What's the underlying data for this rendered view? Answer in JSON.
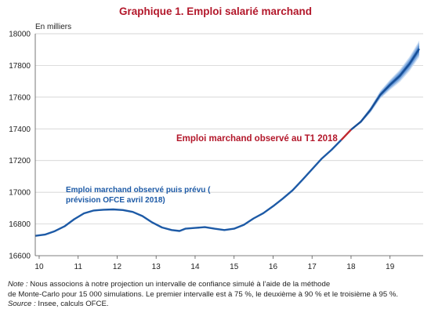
{
  "header": {
    "title": "Graphique 1. Emploi salarié marchand",
    "unit": "En milliers"
  },
  "chart_data": {
    "type": "line",
    "title": "Graphique 1. Emploi salarié marchand",
    "ylabel": "En milliers",
    "xlabel": "",
    "xlim": [
      9.9,
      19.85
    ],
    "ylim": [
      16600,
      18000
    ],
    "xticks": [
      10,
      11,
      12,
      13,
      14,
      15,
      16,
      17,
      18,
      19
    ],
    "xtick_labels": [
      "10",
      "11",
      "12",
      "13",
      "14",
      "15",
      "16",
      "17",
      "18",
      "19"
    ],
    "yticks": [
      16600,
      16800,
      17000,
      17200,
      17400,
      17600,
      17800,
      18000
    ],
    "ytick_labels": [
      "16600",
      "16800",
      "17000",
      "17200",
      "17400",
      "17600",
      "17800",
      "18000"
    ],
    "grid": "horizontal",
    "series": [
      {
        "name": "Emploi marchand observé puis prévu ( prévision OFCE avril 2018)",
        "color": "#1d5aa6",
        "points": [
          [
            9.9,
            16725
          ],
          [
            10.15,
            16733
          ],
          [
            10.4,
            16755
          ],
          [
            10.65,
            16785
          ],
          [
            10.9,
            16830
          ],
          [
            11.15,
            16867
          ],
          [
            11.4,
            16885
          ],
          [
            11.65,
            16890
          ],
          [
            11.9,
            16892
          ],
          [
            12.15,
            16888
          ],
          [
            12.4,
            16876
          ],
          [
            12.65,
            16850
          ],
          [
            12.9,
            16810
          ],
          [
            13.15,
            16778
          ],
          [
            13.4,
            16762
          ],
          [
            13.6,
            16756
          ],
          [
            13.75,
            16770
          ],
          [
            14.0,
            16775
          ],
          [
            14.25,
            16780
          ],
          [
            14.5,
            16770
          ],
          [
            14.75,
            16762
          ],
          [
            15.0,
            16770
          ],
          [
            15.25,
            16795
          ],
          [
            15.5,
            16835
          ],
          [
            15.75,
            16868
          ],
          [
            16.0,
            16912
          ],
          [
            16.25,
            16960
          ],
          [
            16.5,
            17012
          ],
          [
            16.75,
            17078
          ],
          [
            17.0,
            17145
          ],
          [
            17.25,
            17213
          ],
          [
            17.5,
            17268
          ],
          [
            17.75,
            17330
          ],
          [
            18.0,
            17395
          ]
        ]
      },
      {
        "name": "Emploi marchand observé au T1 2018",
        "color": "#c0272d",
        "points": [
          [
            17.75,
            17330
          ],
          [
            18.0,
            17395
          ]
        ]
      },
      {
        "name": "Prévision",
        "color": "#1d5aa6",
        "points": [
          [
            18.0,
            17395
          ],
          [
            18.25,
            17445
          ],
          [
            18.5,
            17520
          ],
          [
            18.75,
            17615
          ],
          [
            19.0,
            17678
          ],
          [
            19.25,
            17735
          ],
          [
            19.5,
            17810
          ],
          [
            19.75,
            17905
          ]
        ]
      }
    ],
    "confidence_bands": [
      {
        "level": "75 %",
        "color": "#4f86cc",
        "halfwidth_end": 22
      },
      {
        "level": "90 %",
        "color": "#86aee0",
        "halfwidth_end": 38
      },
      {
        "level": "95 %",
        "color": "#c6daf2",
        "halfwidth_end": 52
      }
    ],
    "annotations": [
      {
        "text": "Emploi marchand observé au T1 2018",
        "color": "#b3182b"
      },
      {
        "text": "Emploi marchand observé puis prévu (",
        "color": "#1d5aa6"
      },
      {
        "text": "prévision OFCE avril 2018)",
        "color": "#1d5aa6"
      }
    ]
  },
  "notes": {
    "note_label": "Note :",
    "note_line1": "Nous associons à notre projection un intervalle de confiance simulé à l’aide de la méthode",
    "note_line2": "de Monte-Carlo pour 15 000 simulations. Le premier intervalle est à 75 %, le deuxième à 90 % et le troisième à 95 %.",
    "source_label": "Source :",
    "source_text": "Insee, calculs OFCE."
  }
}
